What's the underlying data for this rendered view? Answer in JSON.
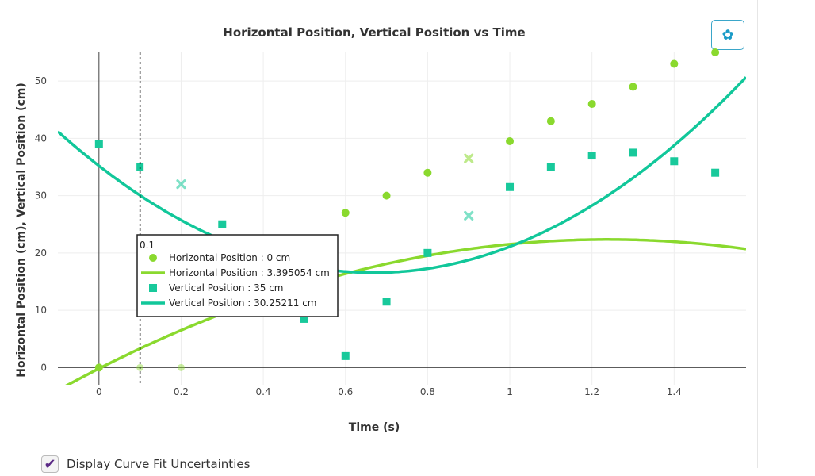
{
  "settings": {
    "icon": "gear-icon",
    "glyph": "✿"
  },
  "options": {
    "uncertainty_label": "Display Curve Fit Uncertainties",
    "uncertainty_checked": true,
    "check_glyph": "✔"
  },
  "tooltip": {
    "header": "0.1",
    "rows": [
      {
        "kind": "marker-circle",
        "text": "Horizontal Position : 0 cm"
      },
      {
        "kind": "line",
        "text": "Horizontal Position : 3.395054 cm"
      },
      {
        "kind": "marker-square",
        "text": "Vertical Position  : 35 cm"
      },
      {
        "kind": "line-v",
        "text": "Vertical Position  : 30.25211 cm"
      }
    ]
  },
  "colors": {
    "horizontal": "#8ad92e",
    "vertical": "#18c99b",
    "fit_horizontal": "#8ad92e",
    "fit_vertical": "#11c79a"
  },
  "chart_data": {
    "type": "scatter",
    "title": "Horizontal Position, Vertical Position vs Time",
    "xlabel": "Time (s)",
    "ylabel": "Horizontal Position (cm), Vertical Position (cm)",
    "xlim": [
      -0.1,
      1.575
    ],
    "ylim": [
      -3,
      55
    ],
    "xticks": [
      0,
      0.2,
      0.4,
      0.6,
      0.8,
      1,
      1.2,
      1.4
    ],
    "xtick_labels": [
      "0",
      "0.2",
      "0.4",
      "0.6",
      "0.8",
      "1",
      "1.2",
      "1.4"
    ],
    "yticks": [
      0,
      10,
      20,
      30,
      40,
      50
    ],
    "ytick_labels": [
      "0",
      "10",
      "20",
      "30",
      "40",
      "50"
    ],
    "hover_x": 0.1,
    "series": [
      {
        "name": "Horizontal Position",
        "marker": "circle",
        "x": [
          0,
          0.1,
          0.2,
          0.6,
          0.7,
          0.8,
          0.9,
          1.0,
          1.1,
          1.2,
          1.3,
          1.4,
          1.5
        ],
        "y": [
          0,
          0,
          0,
          27,
          30,
          34,
          36.5,
          39.5,
          43,
          46,
          49,
          53,
          55
        ],
        "excluded": [
          false,
          true,
          true,
          false,
          false,
          false,
          true,
          false,
          false,
          false,
          false,
          false,
          false
        ]
      },
      {
        "name": "Vertical Position",
        "marker": "square",
        "x": [
          0,
          0.1,
          0.2,
          0.3,
          0.5,
          0.6,
          0.7,
          0.8,
          0.9,
          1.0,
          1.1,
          1.2,
          1.3,
          1.4,
          1.5
        ],
        "y": [
          39,
          35,
          32,
          25,
          8.5,
          2,
          11.5,
          20,
          26.5,
          31.5,
          35,
          37,
          37.5,
          36,
          34
        ],
        "excluded": [
          false,
          true,
          true,
          false,
          false,
          false,
          false,
          false,
          true,
          false,
          false,
          false,
          false,
          false,
          false
        ]
      }
    ],
    "fits": [
      {
        "name": "Horizontal Position",
        "type": "quadratic",
        "coefficients": [
          -0.18,
          36.4,
          -14.7
        ],
        "x_range": [
          -0.1,
          1.575
        ]
      },
      {
        "name": "Vertical Position",
        "type": "quadratic",
        "coefficients": [
          35.2,
          -55.7,
          41.6
        ],
        "x_range": [
          -0.1,
          1.575
        ]
      }
    ]
  }
}
